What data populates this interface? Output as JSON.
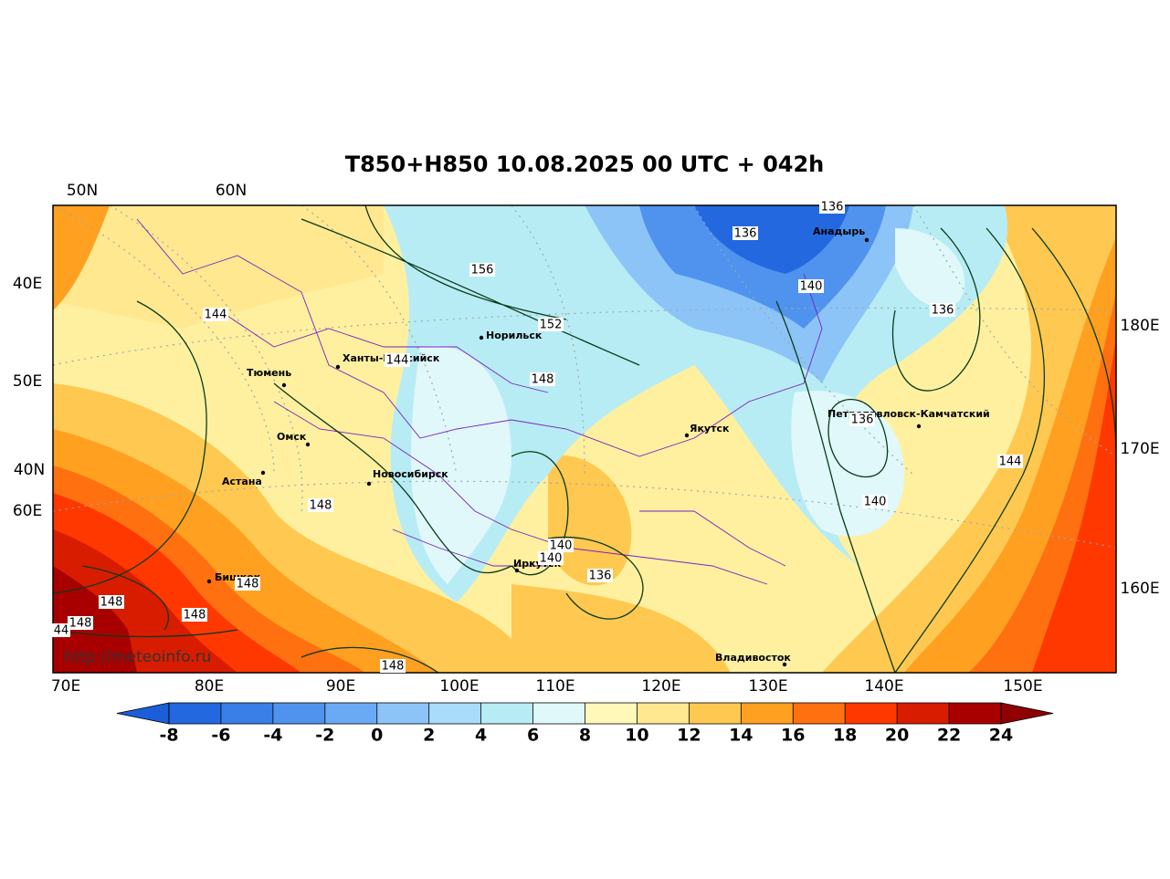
{
  "title": "T850+H850 10.08.2025 00 UTC + 042h",
  "axis_labels": {
    "top": [
      "50N",
      "60N"
    ],
    "left": [
      "40E",
      "50E",
      "40N",
      "60E"
    ],
    "right": [
      "180E",
      "170E",
      "160E"
    ],
    "bottom": [
      "70E",
      "80E",
      "90E",
      "100E",
      "110E",
      "120E",
      "130E",
      "140E",
      "150E"
    ]
  },
  "cities": [
    "Норильск",
    "Ханты-Мансийск",
    "Тюмень",
    "Омск",
    "Астана",
    "Новосибирск",
    "Бишкек",
    "Иркутск",
    "Якутск",
    "Анадырь",
    "Петропавловск-Камчатский",
    "Владивосток"
  ],
  "contour_labels": [
    "136",
    "136",
    "156",
    "152",
    "140",
    "136",
    "144",
    "144",
    "148",
    "136",
    "144",
    "140",
    "148",
    "140",
    "140",
    "136",
    "148",
    "148",
    "148",
    "148",
    "44",
    "148"
  ],
  "source": "http://meteoinfo.ru",
  "colorbar": {
    "ticks": [
      -8,
      -6,
      -4,
      -2,
      0,
      2,
      4,
      6,
      8,
      10,
      12,
      14,
      16,
      18,
      20,
      22,
      24
    ],
    "colors": [
      "#1a5fd8",
      "#2468e0",
      "#3a7ee8",
      "#4f93ee",
      "#6aaaf4",
      "#8cc4f8",
      "#a8dcfa",
      "#b8ecf4",
      "#e0f8fa",
      "#fff8b8",
      "#ffe890",
      "#ffc850",
      "#ffa020",
      "#ff7010",
      "#ff3800",
      "#d81c00",
      "#a80000",
      "#900000"
    ]
  }
}
